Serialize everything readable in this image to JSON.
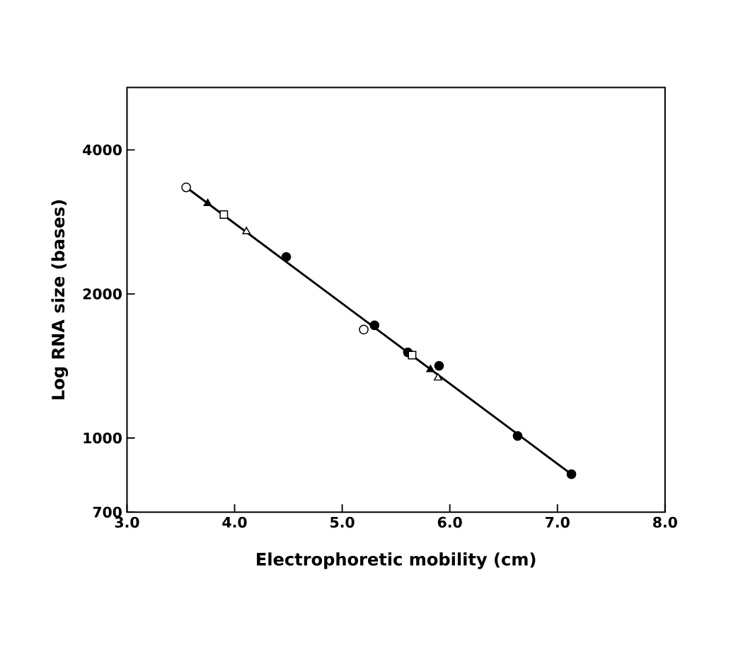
{
  "chart_data": {
    "type": "scatter",
    "xlabel": "Electrophoretic mobility (cm)",
    "ylabel": "Log RNA size (bases)",
    "log": "y",
    "xlim": [
      3.0,
      8.0
    ],
    "ylim": [
      700,
      5400
    ],
    "xticks": [
      {
        "value": 3,
        "label": "3.0"
      },
      {
        "value": 4,
        "label": "4.0"
      },
      {
        "value": 5,
        "label": "5.0"
      },
      {
        "value": 6,
        "label": "6.0"
      },
      {
        "value": 7,
        "label": "7.0"
      },
      {
        "value": 8,
        "label": "8.0"
      }
    ],
    "yticks": [
      700,
      1000,
      2000,
      4000
    ],
    "series": [
      {
        "type": "line",
        "color": "#000000",
        "marker": "none",
        "line_style": "solid",
        "x": [
          3.55,
          7.13
        ],
        "values": [
          3340,
          840
        ]
      },
      {
        "color": "#000000",
        "marker": "circle",
        "x": [
          4.48,
          5.3,
          5.61,
          5.9,
          6.63,
          7.13
        ],
        "values": [
          2390,
          1720,
          1510,
          1415,
          1010,
          840
        ]
      },
      {
        "color": "#ffffff",
        "marker": "circle",
        "x": [
          3.55,
          5.2
        ],
        "values": [
          3340,
          1685
        ]
      },
      {
        "color": "#000000",
        "marker": "triangle",
        "x": [
          3.75,
          5.82
        ],
        "values": [
          3090,
          1390
        ]
      },
      {
        "color": "#ffffff",
        "marker": "triangle",
        "x": [
          4.11,
          5.89
        ],
        "values": [
          2700,
          1335
        ]
      },
      {
        "color": "#ffffff",
        "marker": "square",
        "x": [
          3.9,
          5.65
        ],
        "values": [
          2930,
          1490
        ]
      }
    ]
  }
}
